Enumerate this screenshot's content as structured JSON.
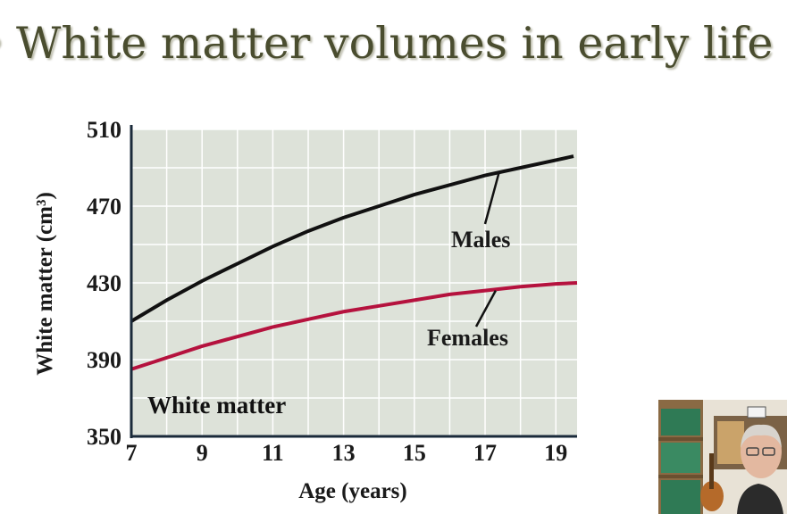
{
  "slide": {
    "title_bullet": "•",
    "title": "White matter volumes in early life"
  },
  "colors": {
    "title": "#4a4d2f",
    "plot_bg": "#dde2d9",
    "grid": "#ffffff",
    "axis": "#1a2a3a",
    "males": "#111111",
    "females": "#b5123e"
  },
  "chart_data": {
    "type": "line",
    "title": "",
    "panel_label": "White matter",
    "xlabel": "Age (years)",
    "ylabel": "White matter (cm³)",
    "xlim": [
      7,
      19.6
    ],
    "ylim": [
      350,
      510
    ],
    "xticks": [
      7,
      9,
      11,
      13,
      15,
      17,
      19
    ],
    "yticks": [
      350,
      390,
      430,
      470,
      510
    ],
    "grid": true,
    "series": [
      {
        "name": "Males",
        "x": [
          7,
          8,
          9,
          10,
          11,
          12,
          13,
          14,
          15,
          16,
          17,
          18,
          19,
          19.5
        ],
        "y": [
          410,
          421,
          431,
          440,
          449,
          457,
          464,
          470,
          476,
          481,
          486,
          490,
          494,
          496
        ]
      },
      {
        "name": "Females",
        "x": [
          7,
          8,
          9,
          10,
          11,
          12,
          13,
          14,
          15,
          16,
          17,
          18,
          19,
          19.6
        ],
        "y": [
          385,
          391,
          397,
          402,
          407,
          411,
          415,
          418,
          421,
          424,
          426,
          428,
          429.5,
          430
        ]
      }
    ]
  },
  "webcam": {
    "icon": "presenter-webcam"
  }
}
